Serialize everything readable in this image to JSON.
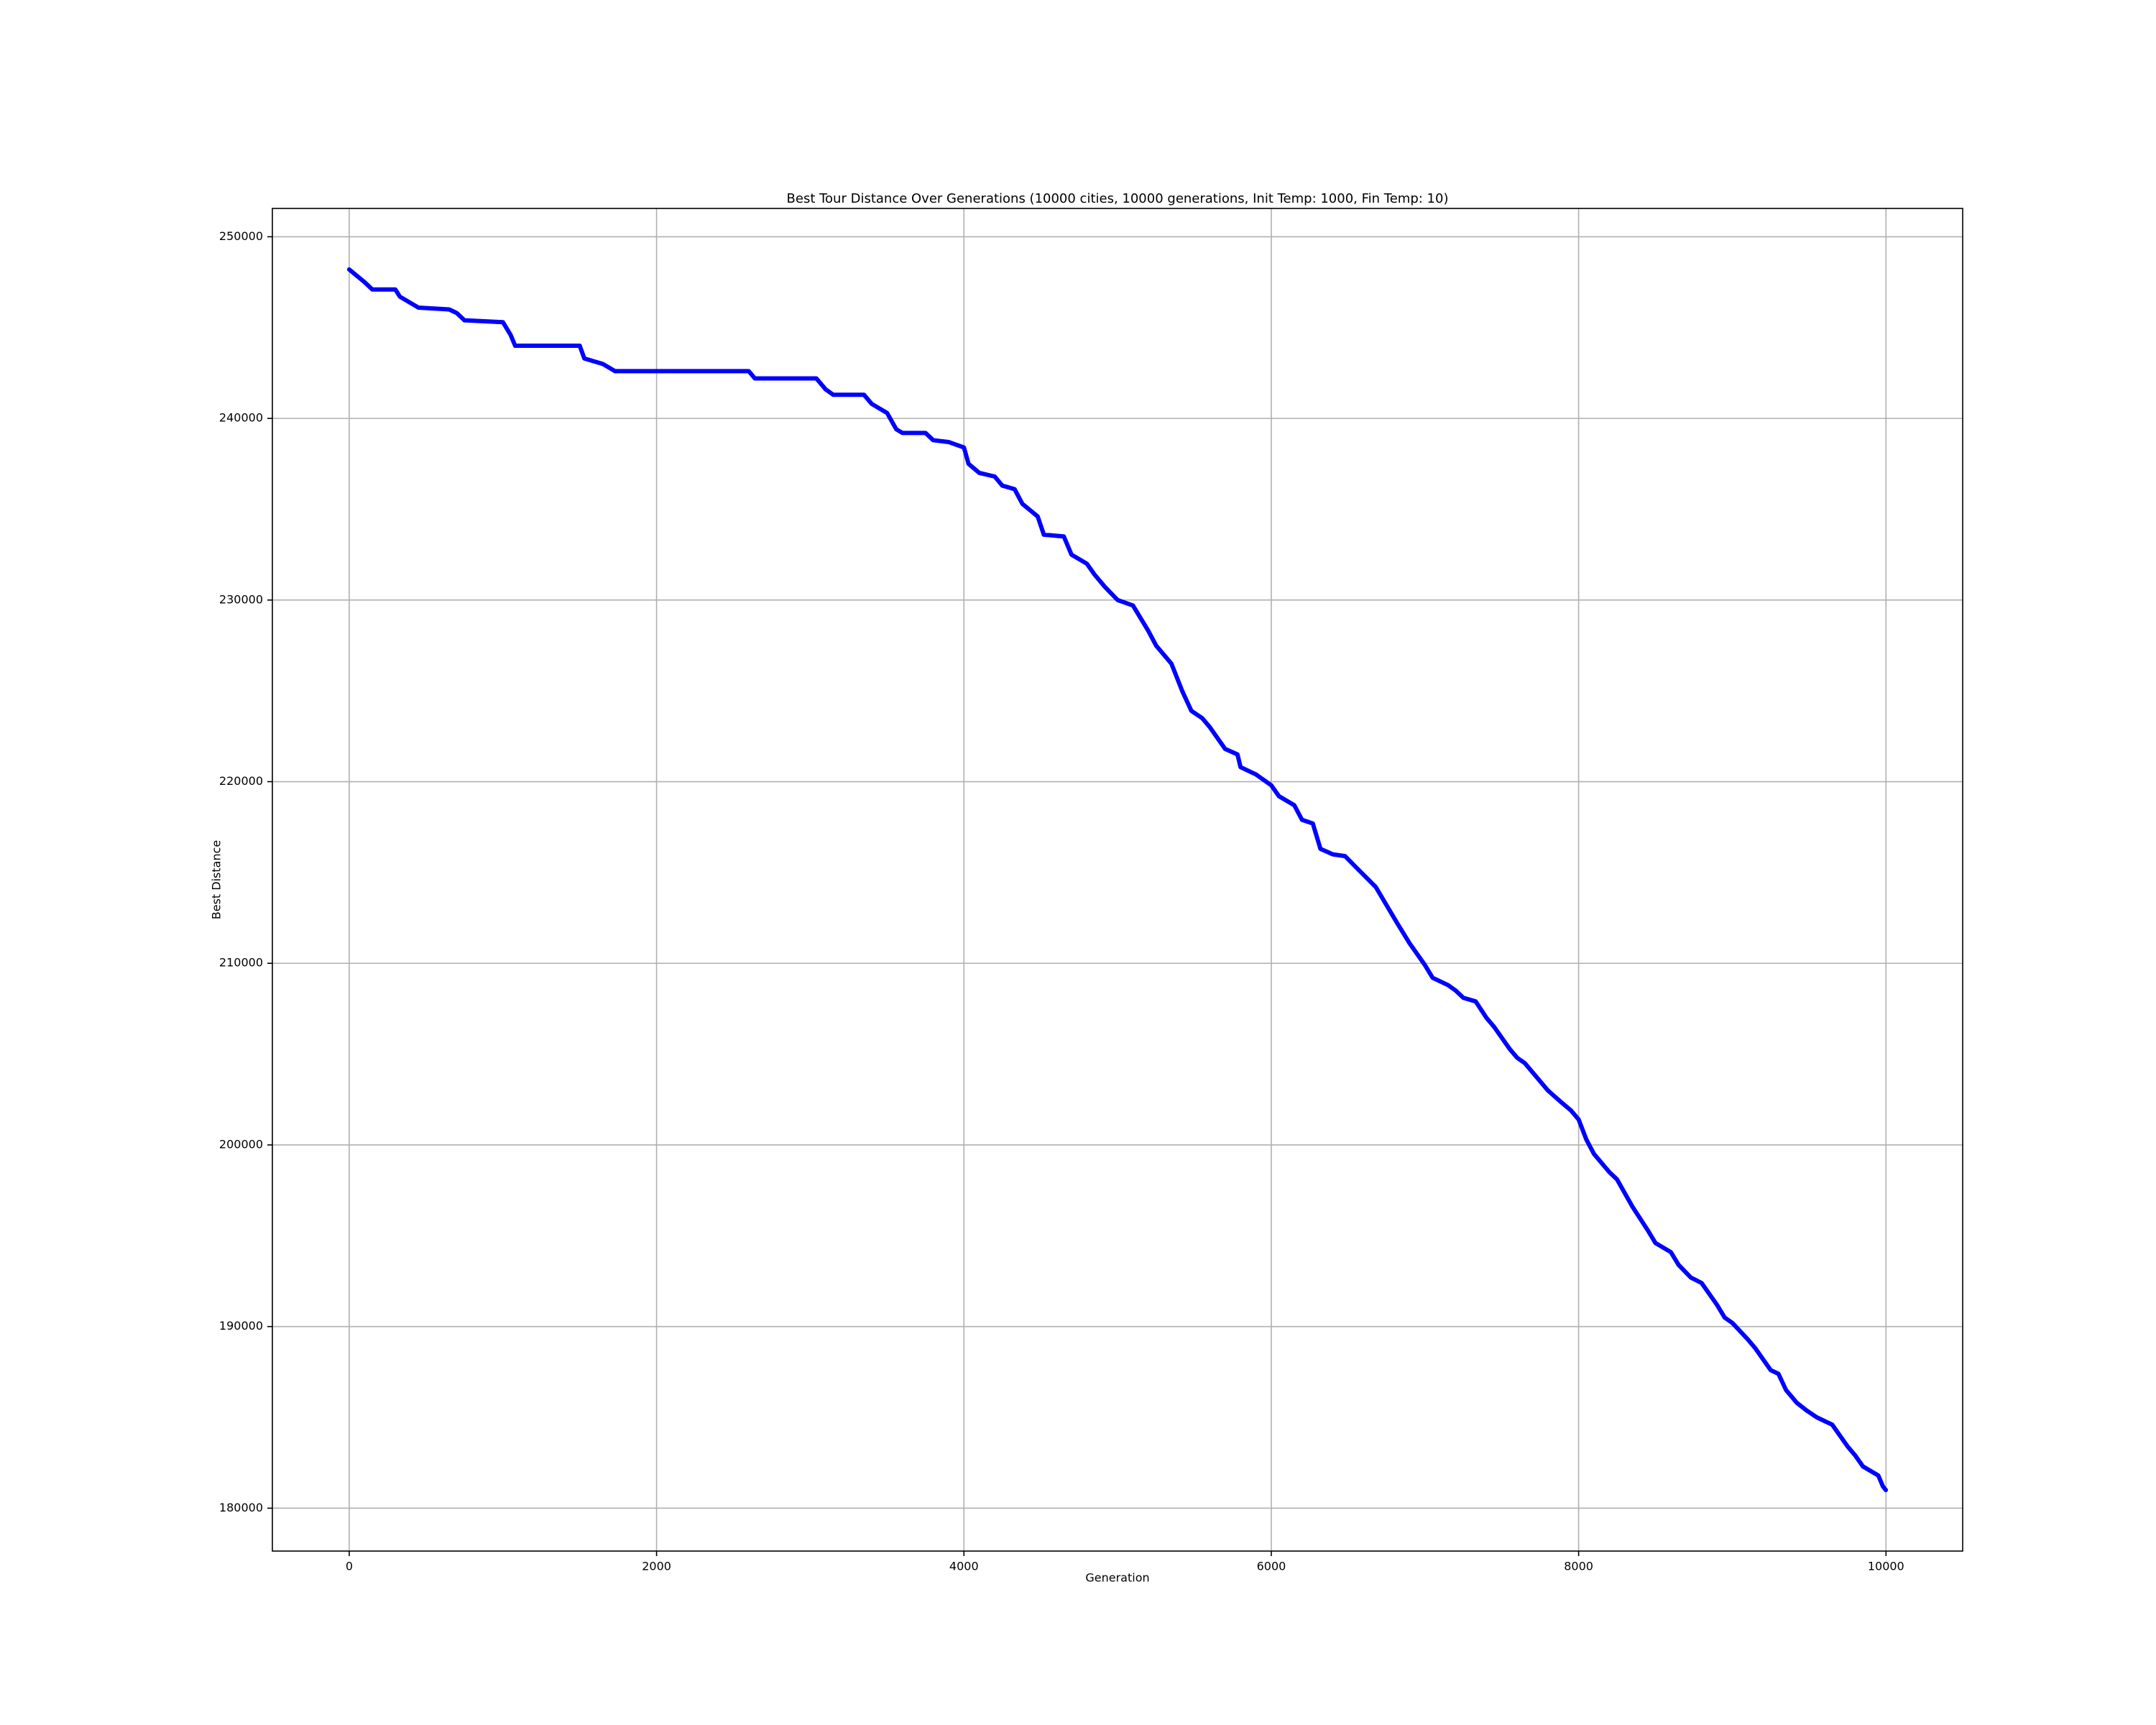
{
  "chart_data": {
    "type": "line",
    "title": "Best Tour Distance Over Generations (10000 cities, 10000 generations, Init Temp: 1000, Fin Temp: 10)",
    "x_label": "Generation",
    "y_label": "Best Distance",
    "x": [
      0,
      100,
      150,
      300,
      330,
      450,
      650,
      700,
      750,
      1000,
      1050,
      1080,
      1500,
      1530,
      1650,
      1730,
      2600,
      2640,
      3040,
      3100,
      3150,
      3350,
      3400,
      3500,
      3560,
      3600,
      3750,
      3800,
      3900,
      4000,
      4030,
      4100,
      4200,
      4250,
      4330,
      4380,
      4480,
      4520,
      4650,
      4700,
      4800,
      4850,
      4920,
      5000,
      5100,
      5200,
      5250,
      5350,
      5420,
      5480,
      5550,
      5600,
      5700,
      5780,
      5800,
      5900,
      6000,
      6050,
      6150,
      6200,
      6270,
      6320,
      6400,
      6480,
      6550,
      6680,
      6750,
      6820,
      6900,
      7000,
      7050,
      7150,
      7200,
      7250,
      7330,
      7400,
      7450,
      7550,
      7600,
      7650,
      7720,
      7800,
      7880,
      7950,
      8000,
      8050,
      8100,
      8200,
      8250,
      8350,
      8450,
      8500,
      8600,
      8650,
      8730,
      8800,
      8900,
      8950,
      9000,
      9100,
      9150,
      9250,
      9300,
      9350,
      9420,
      9480,
      9550,
      9650,
      9700,
      9750,
      9800,
      9850,
      9950,
      9980,
      9999
    ],
    "series": [
      {
        "color": "#0000ff",
        "values": [
          248200,
          247500,
          247100,
          247100,
          246700,
          246100,
          246000,
          245800,
          245400,
          245300,
          244600,
          244000,
          244000,
          243300,
          243000,
          242600,
          242600,
          242200,
          242200,
          241600,
          241300,
          241300,
          240800,
          240300,
          239400,
          239200,
          239200,
          238800,
          238700,
          238400,
          237500,
          237000,
          236800,
          236300,
          236100,
          235300,
          234600,
          233600,
          233500,
          232500,
          232000,
          231400,
          230700,
          230000,
          229700,
          228300,
          227500,
          226500,
          225000,
          223900,
          223500,
          223000,
          221800,
          221500,
          220800,
          220400,
          219800,
          219200,
          218700,
          217900,
          217700,
          216300,
          216000,
          215900,
          215300,
          214200,
          213200,
          212200,
          211100,
          209900,
          209200,
          208800,
          208500,
          208100,
          207900,
          207000,
          206500,
          205300,
          204800,
          204500,
          203800,
          203000,
          202400,
          201900,
          201400,
          200300,
          199500,
          198500,
          198100,
          196600,
          195300,
          194600,
          194100,
          193400,
          192700,
          192400,
          191200,
          190500,
          190200,
          189300,
          188800,
          187600,
          187400,
          186500,
          185800,
          185400,
          185000,
          184600,
          184000,
          183400,
          182900,
          182300,
          181800,
          181200,
          181000
        ]
      }
    ],
    "xlim": [
      -500,
      10499
    ],
    "ylim": [
      177640,
      251560
    ],
    "xticks": [
      0,
      2000,
      4000,
      6000,
      8000,
      10000
    ],
    "yticks": [
      180000,
      190000,
      200000,
      210000,
      220000,
      230000,
      240000,
      250000
    ],
    "grid": true
  }
}
